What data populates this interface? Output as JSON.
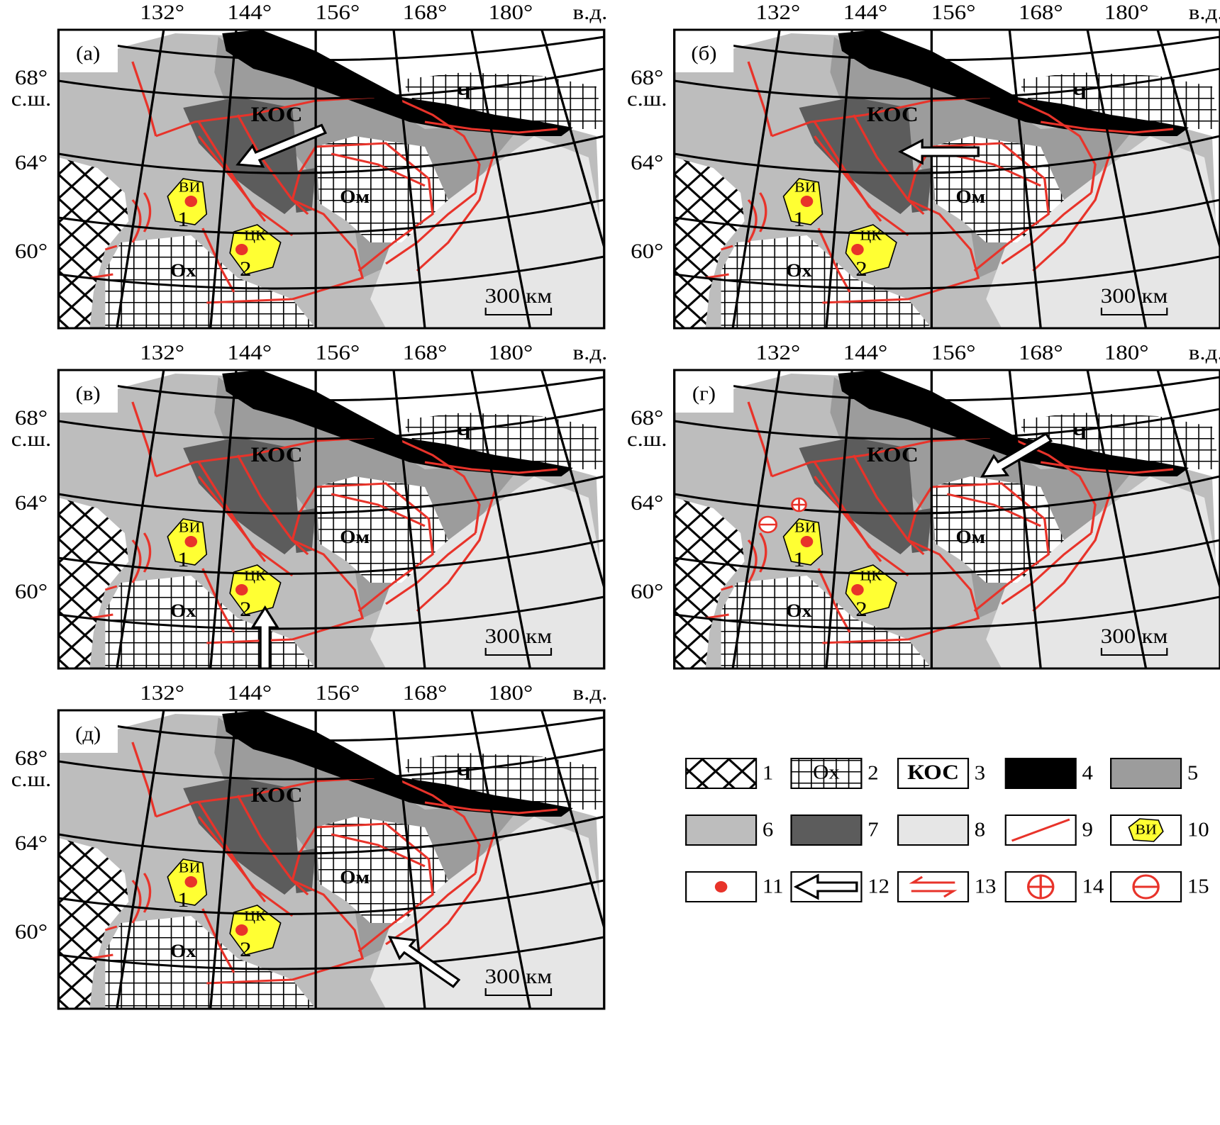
{
  "panels": [
    {
      "label": "(а)",
      "lon_labels": [
        "132°",
        "144°",
        "156°",
        "168°",
        "180°",
        "в.д."
      ],
      "lat_labels": [
        "68°",
        "с.ш.",
        "64°",
        "60°"
      ],
      "regions": [
        "КОС",
        "Ом",
        "Ох",
        "Ч"
      ],
      "plutons": [
        {
          "label": "ВИ",
          "number": "1"
        },
        {
          "label": "ЦК",
          "number": "2"
        }
      ],
      "scale": "300 км"
    },
    {
      "label": "(б)",
      "lon_labels": [
        "132°",
        "144°",
        "156°",
        "168°",
        "180°",
        "в.д."
      ],
      "lat_labels": [
        "68°",
        "с.ш.",
        "64°",
        "60°"
      ],
      "regions": [
        "КОС",
        "Ом",
        "Ох",
        "Ч"
      ],
      "plutons": [
        {
          "label": "ВИ",
          "number": "1"
        },
        {
          "label": "ЦК",
          "number": "2"
        }
      ],
      "scale": "300 км"
    },
    {
      "label": "(в)",
      "lon_labels": [
        "132°",
        "144°",
        "156°",
        "168°",
        "180°",
        "в.д."
      ],
      "lat_labels": [
        "68°",
        "с.ш.",
        "64°",
        "60°"
      ],
      "regions": [
        "КОС",
        "Ом",
        "Ох",
        "Ч"
      ],
      "plutons": [
        {
          "label": "ВИ",
          "number": "1"
        },
        {
          "label": "ЦК",
          "number": "2"
        }
      ],
      "scale": "300 км"
    },
    {
      "label": "(г)",
      "lon_labels": [
        "132°",
        "144°",
        "156°",
        "168°",
        "180°",
        "в.д."
      ],
      "lat_labels": [
        "68°",
        "с.ш.",
        "64°",
        "60°"
      ],
      "regions": [
        "КОС",
        "Ом",
        "Ох",
        "Ч"
      ],
      "plutons": [
        {
          "label": "ВИ",
          "number": "1"
        },
        {
          "label": "ЦК",
          "number": "2"
        }
      ],
      "scale": "300 км"
    },
    {
      "label": "(д)",
      "lon_labels": [
        "132°",
        "144°",
        "156°",
        "168°",
        "180°",
        "в.д."
      ],
      "lat_labels": [
        "68°",
        "с.ш.",
        "64°",
        "60°"
      ],
      "regions": [
        "КОС",
        "Ом",
        "Ох",
        "Ч"
      ],
      "plutons": [
        {
          "label": "ВИ",
          "number": "1"
        },
        {
          "label": "ЦК",
          "number": "2"
        }
      ],
      "scale": "300 км"
    }
  ],
  "legend": {
    "items": [
      {
        "number": "1"
      },
      {
        "number": "2",
        "label": "Ох"
      },
      {
        "number": "3",
        "label": "КОС"
      },
      {
        "number": "4"
      },
      {
        "number": "5"
      },
      {
        "number": "6"
      },
      {
        "number": "7"
      },
      {
        "number": "8"
      },
      {
        "number": "9"
      },
      {
        "number": "10",
        "label": "ВИ"
      },
      {
        "number": "11"
      },
      {
        "number": "12"
      },
      {
        "number": "13"
      },
      {
        "number": "14"
      },
      {
        "number": "15"
      }
    ]
  }
}
